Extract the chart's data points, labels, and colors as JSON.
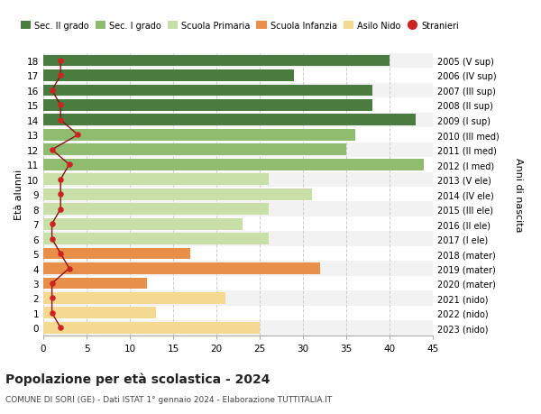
{
  "ages": [
    0,
    1,
    2,
    3,
    4,
    5,
    6,
    7,
    8,
    9,
    10,
    11,
    12,
    13,
    14,
    15,
    16,
    17,
    18
  ],
  "bar_values": [
    25,
    13,
    21,
    12,
    32,
    17,
    26,
    23,
    26,
    31,
    26,
    44,
    35,
    36,
    43,
    38,
    38,
    29,
    40
  ],
  "bar_colors": [
    "#f5d990",
    "#f5d990",
    "#f5d990",
    "#e8904a",
    "#e8904a",
    "#e8904a",
    "#c8dfa8",
    "#c8dfa8",
    "#c8dfa8",
    "#c8dfa8",
    "#c8dfa8",
    "#8fbc6e",
    "#8fbc6e",
    "#8fbc6e",
    "#4a7c3f",
    "#4a7c3f",
    "#4a7c3f",
    "#4a7c3f",
    "#4a7c3f"
  ],
  "stranieri_values": [
    2,
    1,
    1,
    1,
    3,
    2,
    1,
    1,
    2,
    2,
    2,
    3,
    1,
    4,
    2,
    2,
    1,
    2,
    2
  ],
  "right_labels": [
    "2023 (nido)",
    "2022 (nido)",
    "2021 (nido)",
    "2020 (mater)",
    "2019 (mater)",
    "2018 (mater)",
    "2017 (I ele)",
    "2016 (II ele)",
    "2015 (III ele)",
    "2014 (IV ele)",
    "2013 (V ele)",
    "2012 (I med)",
    "2011 (II med)",
    "2010 (III med)",
    "2009 (I sup)",
    "2008 (II sup)",
    "2007 (III sup)",
    "2006 (IV sup)",
    "2005 (V sup)"
  ],
  "legend_labels": [
    "Sec. II grado",
    "Sec. I grado",
    "Scuola Primaria",
    "Scuola Infanzia",
    "Asilo Nido",
    "Stranieri"
  ],
  "legend_colors": [
    "#4a7c3f",
    "#8fbc6e",
    "#c8dfa8",
    "#e8904a",
    "#f5d990",
    "#cc2222"
  ],
  "ylabel_left": "Età alunni",
  "ylabel_right": "Anni di nascita",
  "title": "Popolazione per età scolastica - 2024",
  "subtitle": "COMUNE DI SORI (GE) - Dati ISTAT 1° gennaio 2024 - Elaborazione TUTTITALIA.IT",
  "xlim": [
    0,
    45
  ],
  "xticks": [
    0,
    5,
    10,
    15,
    20,
    25,
    30,
    35,
    40,
    45
  ],
  "bar_height": 0.78,
  "bg_color": "#ffffff",
  "plot_bg": "#ffffff",
  "grid_color": "#cccccc",
  "alt_row_color": "#f2f2f2"
}
